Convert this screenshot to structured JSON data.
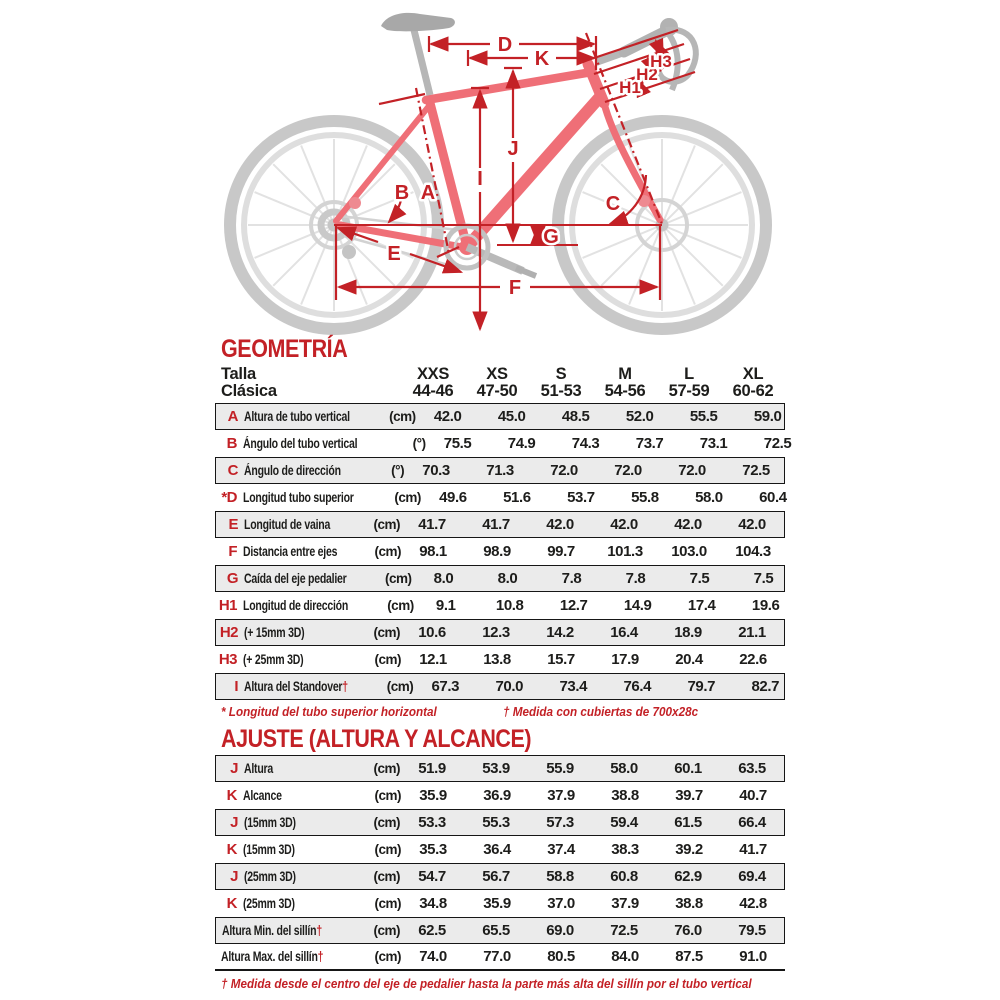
{
  "colors": {
    "accent_red": "#c32126",
    "row_shade": "#ebebeb",
    "border_black": "#161616",
    "text_black": "#1d1d1b",
    "frame_pink": "#ef6f77",
    "ghost_gray": "#c8c8c8"
  },
  "diagram": {
    "labels": {
      "A": "A",
      "B": "B",
      "C": "C",
      "D": "D",
      "E": "E",
      "F": "F",
      "G": "G",
      "I": "I",
      "J": "J",
      "K": "K",
      "H1": "H1",
      "H2": "H2",
      "H3": "H3"
    }
  },
  "geometry": {
    "title": "GEOMETRÍA",
    "header": {
      "col_line1": "Talla",
      "col_line2": "Clásica",
      "sizes": [
        "XXS",
        "XS",
        "S",
        "M",
        "L",
        "XL"
      ],
      "ranges": [
        "44-46",
        "47-50",
        "51-53",
        "54-56",
        "57-59",
        "60-62"
      ]
    },
    "rows": [
      {
        "prefix": "",
        "letter": "A",
        "label": "Altura de tubo vertical",
        "dagger": false,
        "unit": "(cm)",
        "shaded": true,
        "values": [
          "42.0",
          "45.0",
          "48.5",
          "52.0",
          "55.5",
          "59.0"
        ]
      },
      {
        "prefix": "",
        "letter": "B",
        "label": "Ángulo del tubo vertical",
        "dagger": false,
        "unit": "(°)",
        "shaded": false,
        "values": [
          "75.5",
          "74.9",
          "74.3",
          "73.7",
          "73.1",
          "72.5"
        ]
      },
      {
        "prefix": "",
        "letter": "C",
        "label": "Ángulo de dirección",
        "dagger": false,
        "unit": "(°)",
        "shaded": true,
        "values": [
          "70.3",
          "71.3",
          "72.0",
          "72.0",
          "72.0",
          "72.5"
        ]
      },
      {
        "prefix": "*",
        "letter": "D",
        "label": "Longitud tubo superior",
        "dagger": false,
        "unit": "(cm)",
        "shaded": false,
        "values": [
          "49.6",
          "51.6",
          "53.7",
          "55.8",
          "58.0",
          "60.4"
        ]
      },
      {
        "prefix": "",
        "letter": "E",
        "label": "Longitud de vaina",
        "dagger": false,
        "unit": "(cm)",
        "shaded": true,
        "values": [
          "41.7",
          "41.7",
          "42.0",
          "42.0",
          "42.0",
          "42.0"
        ]
      },
      {
        "prefix": "",
        "letter": "F",
        "label": "Distancia entre ejes",
        "dagger": false,
        "unit": "(cm)",
        "shaded": false,
        "values": [
          "98.1",
          "98.9",
          "99.7",
          "101.3",
          "103.0",
          "104.3"
        ]
      },
      {
        "prefix": "",
        "letter": "G",
        "label": "Caída del eje pedalier",
        "dagger": false,
        "unit": "(cm)",
        "shaded": true,
        "values": [
          "8.0",
          "8.0",
          "7.8",
          "7.8",
          "7.5",
          "7.5"
        ]
      },
      {
        "prefix": "",
        "letter": "H1",
        "label": "Longitud de dirección",
        "dagger": false,
        "unit": "(cm)",
        "shaded": false,
        "values": [
          "9.1",
          "10.8",
          "12.7",
          "14.9",
          "17.4",
          "19.6"
        ]
      },
      {
        "prefix": "",
        "letter": "H2",
        "label": "(+ 15mm 3D)",
        "dagger": false,
        "unit": "(cm)",
        "shaded": true,
        "values": [
          "10.6",
          "12.3",
          "14.2",
          "16.4",
          "18.9",
          "21.1"
        ]
      },
      {
        "prefix": "",
        "letter": "H3",
        "label": "(+ 25mm 3D)",
        "dagger": false,
        "unit": "(cm)",
        "shaded": false,
        "values": [
          "12.1",
          "13.8",
          "15.7",
          "17.9",
          "20.4",
          "22.6"
        ]
      },
      {
        "prefix": "",
        "letter": "I",
        "label": "Altura del Standover",
        "dagger": true,
        "unit": "(cm)",
        "shaded": true,
        "values": [
          "67.3",
          "70.0",
          "73.4",
          "76.4",
          "79.7",
          "82.7"
        ]
      }
    ],
    "footnote_left": "* Longitud del tubo superior horizontal",
    "footnote_right": "† Medida con cubiertas de 700x28c"
  },
  "adjust": {
    "title": "AJUSTE (ALTURA Y ALCANCE)",
    "rows": [
      {
        "prefix": "",
        "letter": "J",
        "label": "Altura",
        "dagger": false,
        "unit": "(cm)",
        "shaded": true,
        "values": [
          "51.9",
          "53.9",
          "55.9",
          "58.0",
          "60.1",
          "63.5"
        ]
      },
      {
        "prefix": "",
        "letter": "K",
        "label": "Alcance",
        "dagger": false,
        "unit": "(cm)",
        "shaded": false,
        "values": [
          "35.9",
          "36.9",
          "37.9",
          "38.8",
          "39.7",
          "40.7"
        ]
      },
      {
        "prefix": "",
        "letter": "J",
        "label": "(15mm 3D)",
        "dagger": false,
        "unit": "(cm)",
        "shaded": true,
        "values": [
          "53.3",
          "55.3",
          "57.3",
          "59.4",
          "61.5",
          "66.4"
        ]
      },
      {
        "prefix": "",
        "letter": "K",
        "label": "(15mm 3D)",
        "dagger": false,
        "unit": "(cm)",
        "shaded": false,
        "values": [
          "35.3",
          "36.4",
          "37.4",
          "38.3",
          "39.2",
          "41.7"
        ]
      },
      {
        "prefix": "",
        "letter": "J",
        "label": "(25mm 3D)",
        "dagger": false,
        "unit": "(cm)",
        "shaded": true,
        "values": [
          "54.7",
          "56.7",
          "58.8",
          "60.8",
          "62.9",
          "69.4"
        ]
      },
      {
        "prefix": "",
        "letter": "K",
        "label": "(25mm 3D)",
        "dagger": false,
        "unit": "(cm)",
        "shaded": false,
        "values": [
          "34.8",
          "35.9",
          "37.0",
          "37.9",
          "38.8",
          "42.8"
        ]
      },
      {
        "prefix": "",
        "letter": "",
        "label": "Altura Min. del sillín",
        "dagger": true,
        "unit": "(cm)",
        "shaded": true,
        "values": [
          "62.5",
          "65.5",
          "69.0",
          "72.5",
          "76.0",
          "79.5"
        ]
      },
      {
        "prefix": "",
        "letter": "",
        "label": "Altura Max. del sillín",
        "dagger": true,
        "unit": "(cm)",
        "shaded": false,
        "bottom": true,
        "values": [
          "74.0",
          "77.0",
          "80.5",
          "84.0",
          "87.5",
          "91.0"
        ]
      }
    ],
    "footnote": "† Medida desde el centro del eje de pedalier hasta la parte más alta del sillín por el tubo vertical"
  }
}
